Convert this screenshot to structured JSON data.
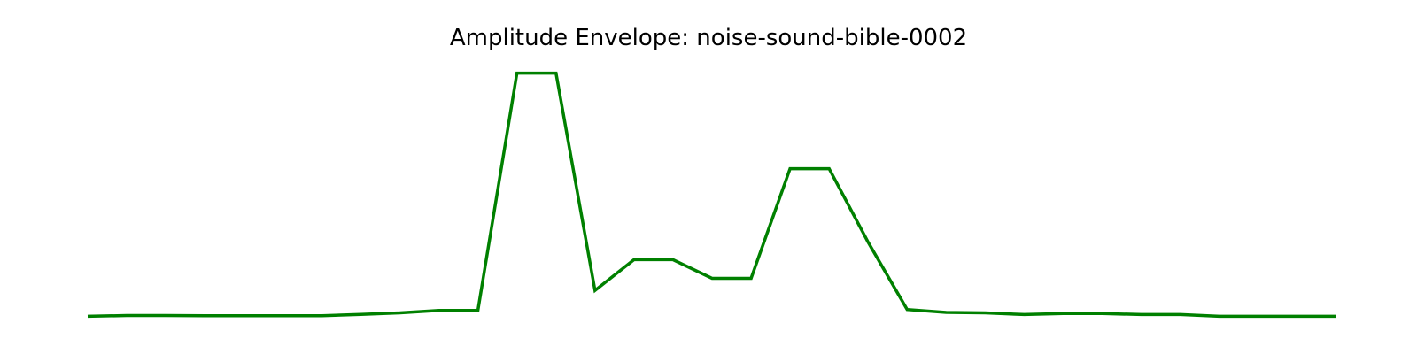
{
  "chart_data": {
    "type": "line",
    "title": "Amplitude Envelope: noise-sound-bible-0002",
    "xlabel": "",
    "ylabel": "",
    "axes_visible": false,
    "grid": false,
    "legend": "none",
    "line_color": "#008000",
    "x": [
      0,
      1,
      2,
      3,
      4,
      5,
      6,
      7,
      8,
      9,
      10,
      11,
      12,
      13,
      14,
      15,
      16,
      17,
      18,
      19,
      20,
      21,
      22,
      23,
      24,
      25,
      26,
      27,
      28,
      29,
      30,
      31,
      32
    ],
    "y": [
      0.0,
      0.003,
      0.003,
      0.002,
      0.002,
      0.002,
      0.002,
      0.008,
      0.014,
      0.024,
      0.024,
      1.0,
      1.0,
      0.106,
      0.233,
      0.233,
      0.156,
      0.156,
      0.607,
      0.607,
      0.304,
      0.028,
      0.016,
      0.014,
      0.007,
      0.011,
      0.011,
      0.007,
      0.007,
      0.0,
      0.0,
      0.0,
      0.0
    ],
    "xlim": [
      0,
      32
    ],
    "ylim": [
      -0.046,
      1.046
    ]
  }
}
